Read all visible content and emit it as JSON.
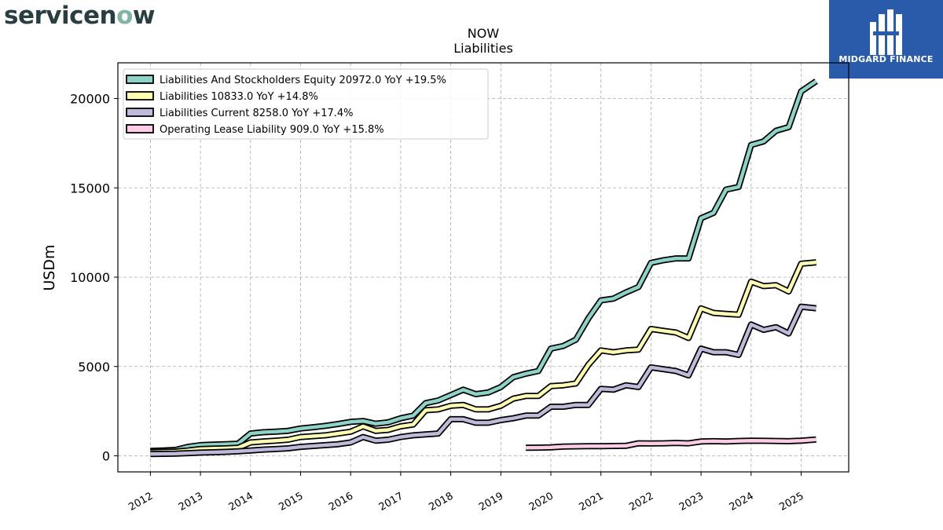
{
  "branding": {
    "logo_text_before": "servicen",
    "logo_text_o": "o",
    "logo_text_after": "w",
    "badge_text": "MIDGARD FINANCE",
    "badge_color": "#2a5aaa"
  },
  "chart_data": {
    "type": "line",
    "title": "NOW",
    "subtitle": "Liabilities",
    "ylabel": "USDm",
    "xlabel": "",
    "ylim": [
      -900,
      22000
    ],
    "xlim": [
      2011.35,
      2025.95
    ],
    "yticks": [
      0,
      5000,
      10000,
      15000,
      20000
    ],
    "xticks": [
      "2012",
      "2013",
      "2014",
      "2015",
      "2016",
      "2017",
      "2018",
      "2019",
      "2020",
      "2021",
      "2022",
      "2023",
      "2024",
      "2025"
    ],
    "grid": true,
    "legend_position": "top-left",
    "series": [
      {
        "name": "Liabilities And Stockholders Equity",
        "legend": "Liabilities And Stockholders Equity  20972.0 YoY +19.5%",
        "color": "#8dd3c7",
        "x": [
          2012.0,
          2012.25,
          2012.5,
          2012.75,
          2013.0,
          2013.25,
          2013.5,
          2013.75,
          2014.0,
          2014.25,
          2014.5,
          2014.75,
          2015.0,
          2015.25,
          2015.5,
          2015.75,
          2016.0,
          2016.25,
          2016.5,
          2016.75,
          2017.0,
          2017.25,
          2017.5,
          2017.75,
          2018.0,
          2018.25,
          2018.5,
          2018.75,
          2019.0,
          2019.25,
          2019.5,
          2019.75,
          2020.0,
          2020.25,
          2020.5,
          2020.75,
          2021.0,
          2021.25,
          2021.5,
          2021.75,
          2022.0,
          2022.25,
          2022.5,
          2022.75,
          2023.0,
          2023.25,
          2023.5,
          2023.75,
          2024.0,
          2024.25,
          2024.5,
          2024.75,
          2025.0,
          2025.3
        ],
        "y": [
          280,
          300,
          330,
          500,
          600,
          630,
          650,
          680,
          1250,
          1320,
          1350,
          1400,
          1530,
          1600,
          1680,
          1780,
          1900,
          1950,
          1800,
          1880,
          2100,
          2250,
          2950,
          3100,
          3400,
          3700,
          3450,
          3550,
          3850,
          4400,
          4600,
          4750,
          6000,
          6150,
          6500,
          7700,
          8700,
          8800,
          9150,
          9450,
          10800,
          10950,
          11050,
          11050,
          13300,
          13600,
          14900,
          15050,
          17400,
          17600,
          18200,
          18400,
          20400,
          20972
        ]
      },
      {
        "name": "Liabilities",
        "legend": "Liabilities  10833.0 YoY +14.8%",
        "color": "#ffffb3",
        "x": [
          2012.0,
          2012.25,
          2012.5,
          2012.75,
          2013.0,
          2013.25,
          2013.5,
          2013.75,
          2014.0,
          2014.25,
          2014.5,
          2014.75,
          2015.0,
          2015.25,
          2015.5,
          2015.75,
          2016.0,
          2016.25,
          2016.5,
          2016.75,
          2017.0,
          2017.25,
          2017.5,
          2017.75,
          2018.0,
          2018.25,
          2018.5,
          2018.75,
          2019.0,
          2019.25,
          2019.5,
          2019.75,
          2020.0,
          2020.25,
          2020.5,
          2020.75,
          2021.0,
          2021.25,
          2021.5,
          2021.75,
          2022.0,
          2022.25,
          2022.5,
          2022.75,
          2023.0,
          2023.25,
          2023.5,
          2023.75,
          2024.0,
          2024.25,
          2024.5,
          2024.75,
          2025.0,
          2025.3
        ],
        "y": [
          200,
          220,
          240,
          300,
          380,
          400,
          420,
          450,
          750,
          800,
          850,
          900,
          1050,
          1100,
          1150,
          1250,
          1350,
          1650,
          1400,
          1450,
          1650,
          1750,
          2550,
          2600,
          2800,
          2850,
          2600,
          2600,
          2800,
          3200,
          3350,
          3350,
          3900,
          3950,
          4050,
          5100,
          5900,
          5800,
          5900,
          5950,
          7100,
          7000,
          6900,
          6600,
          8250,
          8000,
          7950,
          7900,
          9750,
          9500,
          9550,
          9200,
          10750,
          10833
        ]
      },
      {
        "name": "Liabilities Current",
        "legend": "Liabilities Current  8258.0 YoY +17.4%",
        "color": "#bebada",
        "x": [
          2012.0,
          2012.25,
          2012.5,
          2012.75,
          2013.0,
          2013.25,
          2013.5,
          2013.75,
          2014.0,
          2014.25,
          2014.5,
          2014.75,
          2015.0,
          2015.25,
          2015.5,
          2015.75,
          2016.0,
          2016.25,
          2016.5,
          2016.75,
          2017.0,
          2017.25,
          2017.5,
          2017.75,
          2018.0,
          2018.25,
          2018.5,
          2018.75,
          2019.0,
          2019.25,
          2019.5,
          2019.75,
          2020.0,
          2020.25,
          2020.5,
          2020.75,
          2021.0,
          2021.25,
          2021.5,
          2021.75,
          2022.0,
          2022.25,
          2022.5,
          2022.75,
          2023.0,
          2023.25,
          2023.5,
          2023.75,
          2024.0,
          2024.25,
          2024.5,
          2024.75,
          2025.0,
          2025.3
        ],
        "y": [
          100,
          110,
          120,
          150,
          180,
          200,
          220,
          250,
          300,
          350,
          380,
          420,
          500,
          550,
          600,
          650,
          750,
          1050,
          850,
          900,
          1050,
          1150,
          1200,
          1250,
          2050,
          2050,
          1850,
          1850,
          2000,
          2100,
          2250,
          2250,
          2750,
          2750,
          2850,
          2850,
          3750,
          3700,
          3950,
          3850,
          4950,
          4850,
          4750,
          4500,
          6000,
          5800,
          5800,
          5650,
          7350,
          7050,
          7200,
          6850,
          8350,
          8258
        ]
      },
      {
        "name": "Operating Lease Liability",
        "legend": "Operating Lease Liability  909.0 YoY +15.8%",
        "color": "#fccde5",
        "x": [
          2019.5,
          2019.75,
          2020.0,
          2020.25,
          2020.5,
          2020.75,
          2021.0,
          2021.25,
          2021.5,
          2021.75,
          2022.0,
          2022.25,
          2022.5,
          2022.75,
          2023.0,
          2023.25,
          2023.5,
          2023.75,
          2024.0,
          2024.25,
          2024.5,
          2024.75,
          2025.0,
          2025.3
        ],
        "y": [
          450,
          460,
          470,
          520,
          530,
          540,
          540,
          550,
          560,
          700,
          690,
          700,
          720,
          700,
          800,
          820,
          800,
          830,
          850,
          840,
          830,
          820,
          850,
          909
        ]
      }
    ]
  }
}
